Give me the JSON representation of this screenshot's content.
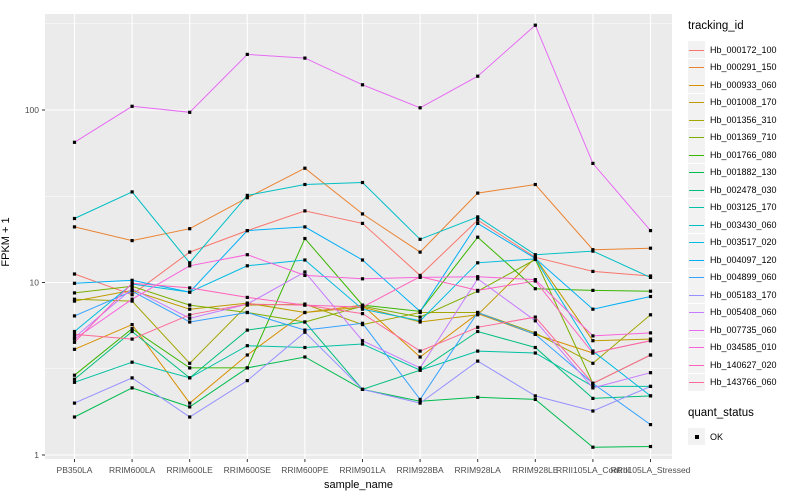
{
  "figure": {
    "panel_bg": "#EBEBEB",
    "grid_color": "#FFFFFF",
    "tick_text_color": "#4D4D4D",
    "point_color": "#000000"
  },
  "axes": {
    "y": {
      "title": "FPKM + 1",
      "tick_labels": [
        "1",
        "10",
        "100"
      ],
      "tick_values": [
        1,
        10,
        100
      ],
      "minor_values": [
        3.1623,
        31.623,
        316.23
      ]
    },
    "x": {
      "title": "sample_name"
    }
  },
  "legend": {
    "tracking_title": "tracking_id",
    "quant_title": "quant_status",
    "quant_items": [
      {
        "label": "OK"
      }
    ]
  },
  "chart_data": {
    "type": "line",
    "yscale": "log10",
    "ylim": [
      1,
      360
    ],
    "grid": true,
    "legend_position": "right",
    "title": "",
    "xlabel": "sample_name",
    "ylabel": "FPKM + 1",
    "categories": [
      "PB350LA",
      "RRIM600LA",
      "RRIM600LE",
      "RRIM600SE",
      "RRIM600PE",
      "RRIM901LA",
      "RRIM928BA",
      "RRIM928LA",
      "RRIM928LE",
      "RRII105LA_Control",
      "RRII105LA_Stressed"
    ],
    "series": [
      {
        "name": "Hb_000172_100",
        "color": "#F8766D",
        "values": [
          11.2,
          8.5,
          15,
          20,
          26,
          22,
          11,
          23,
          14,
          11.6,
          10.9
        ]
      },
      {
        "name": "Hb_000291_150",
        "color": "#EA8331",
        "values": [
          21,
          17.5,
          20.5,
          31,
          46,
          25,
          15,
          33,
          37,
          15.5,
          15.8
        ]
      },
      {
        "name": "Hb_000933_060",
        "color": "#D89000",
        "values": [
          4.1,
          5.7,
          2.0,
          3.8,
          6.7,
          7.4,
          3.7,
          6.6,
          5.0,
          3.9,
          4.6
        ]
      },
      {
        "name": "Hb_001008_170",
        "color": "#C09B00",
        "values": [
          7.8,
          9.0,
          7.0,
          7.6,
          6.7,
          7.2,
          5.9,
          6.5,
          13.9,
          4.6,
          4.7
        ]
      },
      {
        "name": "Hb_001356_310",
        "color": "#A3A500",
        "values": [
          8.0,
          7.8,
          3.4,
          7.4,
          7.5,
          5.7,
          6.7,
          6.7,
          5.1,
          3.4,
          6.5
        ]
      },
      {
        "name": "Hb_001369_710",
        "color": "#7CAE00",
        "values": [
          8.7,
          9.5,
          7.4,
          6.7,
          5.9,
          7.3,
          6.3,
          8.9,
          13.6,
          2.6,
          3.8
        ]
      },
      {
        "name": "Hb_001766_080",
        "color": "#39B600",
        "values": [
          2.9,
          5.4,
          3.2,
          3.2,
          18.0,
          7.4,
          6.8,
          18.3,
          9.2,
          9.0,
          8.9
        ]
      },
      {
        "name": "Hb_001882_130",
        "color": "#00BB4E",
        "values": [
          1.66,
          2.45,
          1.9,
          3.2,
          3.7,
          2.4,
          2.05,
          2.16,
          2.1,
          1.11,
          1.12
        ]
      },
      {
        "name": "Hb_002478_030",
        "color": "#00BF7D",
        "values": [
          2.75,
          5.2,
          2.8,
          5.3,
          5.9,
          2.4,
          3.1,
          5.2,
          4.2,
          2.13,
          2.2
        ]
      },
      {
        "name": "Hb_003125_170",
        "color": "#00C1A3",
        "values": [
          2.64,
          3.45,
          2.8,
          4.3,
          4.2,
          4.4,
          3.1,
          4.0,
          3.9,
          2.5,
          2.5
        ]
      },
      {
        "name": "Hb_003430_060",
        "color": "#00BFC4",
        "values": [
          23.5,
          33.5,
          13,
          32,
          37,
          38,
          17.8,
          24,
          14.5,
          15.2,
          10.7
        ]
      },
      {
        "name": "Hb_003517_020",
        "color": "#00BAE0",
        "values": [
          5.2,
          9.8,
          8.8,
          12.5,
          13.5,
          7.0,
          6.0,
          13.0,
          13.7,
          4.0,
          2.2
        ]
      },
      {
        "name": "Hb_004097_120",
        "color": "#00B0F6",
        "values": [
          9.9,
          10.3,
          8.8,
          20,
          21,
          13.5,
          6.8,
          22,
          13.8,
          7.0,
          8.3
        ]
      },
      {
        "name": "Hb_004899_060",
        "color": "#35A2FF",
        "values": [
          6.4,
          8.9,
          5.9,
          6.7,
          5.3,
          5.8,
          2.1,
          6.7,
          5.0,
          2.6,
          1.5
        ]
      },
      {
        "name": "Hb_005183_170",
        "color": "#9590FF",
        "values": [
          2.0,
          2.8,
          1.66,
          2.7,
          5.15,
          2.4,
          2.0,
          3.5,
          2.2,
          1.8,
          2.5
        ]
      },
      {
        "name": "Hb_005408_060",
        "color": "#C77CFF",
        "values": [
          4.8,
          9.2,
          6.2,
          7.5,
          11.5,
          4.6,
          3.2,
          10.5,
          6.0,
          2.45,
          3.0
        ]
      },
      {
        "name": "Hb_007735_060",
        "color": "#E76BF3",
        "values": [
          65,
          105,
          97,
          210,
          200,
          140,
          103,
          157,
          310,
          49,
          20
        ]
      },
      {
        "name": "Hb_034585_010",
        "color": "#FA62DB",
        "values": [
          4.7,
          8.0,
          12.5,
          14.5,
          11.0,
          10.5,
          10.7,
          10.8,
          10.4,
          4.9,
          5.1
        ]
      },
      {
        "name": "Hb_140627_020",
        "color": "#FF62BC",
        "values": [
          4.5,
          9.9,
          9.3,
          8.2,
          7.4,
          7.2,
          10.8,
          9.0,
          10.2,
          3.9,
          4.6
        ]
      },
      {
        "name": "Hb_143766_060",
        "color": "#FF6A98",
        "values": [
          5.0,
          4.7,
          6.5,
          7.5,
          7.4,
          6.6,
          4.0,
          5.5,
          6.3,
          2.6,
          3.8
        ]
      }
    ]
  }
}
